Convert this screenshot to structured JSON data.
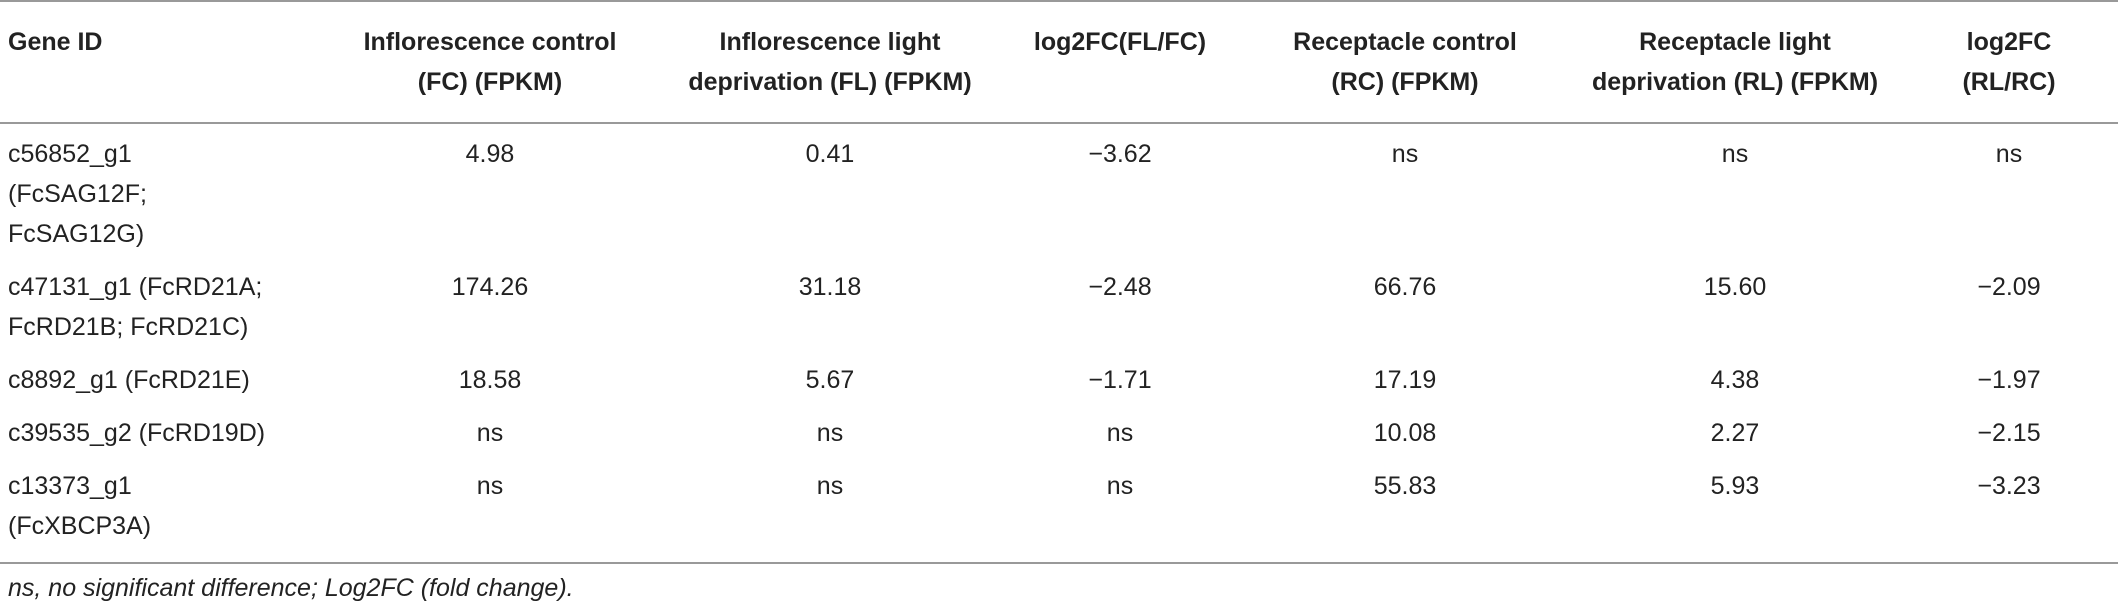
{
  "table": {
    "headers": [
      "Gene ID",
      "Inflorescence control\n(FC) (FPKM)",
      "Inflorescence light\ndeprivation (FL) (FPKM)",
      "log2FC(FL/FC)",
      "Receptacle control\n(RC) (FPKM)",
      "Receptacle light\ndeprivation (RL) (FPKM)",
      "log2FC\n(RL/RC)"
    ],
    "rows": [
      [
        "c56852_g1\n(FcSAG12F;\nFcSAG12G)",
        "4.98",
        "0.41",
        "−3.62",
        "ns",
        "ns",
        "ns"
      ],
      [
        "c47131_g1 (FcRD21A;\nFcRD21B; FcRD21C)",
        "174.26",
        "31.18",
        "−2.48",
        "66.76",
        "15.60",
        "−2.09"
      ],
      [
        "c8892_g1 (FcRD21E)",
        "18.58",
        "5.67",
        "−1.71",
        "17.19",
        "4.38",
        "−1.97"
      ],
      [
        "c39535_g2 (FcRD19D)",
        "ns",
        "ns",
        "ns",
        "10.08",
        "2.27",
        "−2.15"
      ],
      [
        "c13373_g1\n(FcXBCP3A)",
        "ns",
        "ns",
        "ns",
        "55.83",
        "5.93",
        "−3.23"
      ]
    ],
    "footnote": "ns, no significant difference; Log2FC (fold change)."
  }
}
